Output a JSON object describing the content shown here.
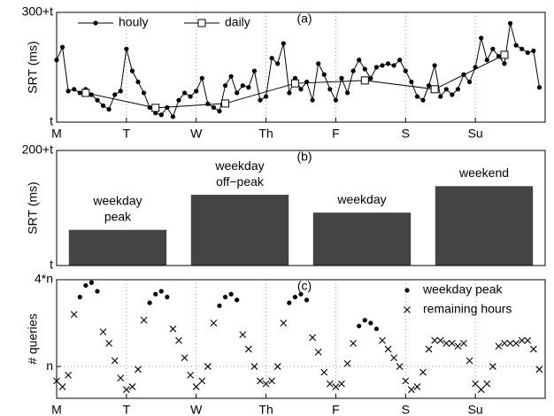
{
  "chart_data": [
    {
      "type": "line",
      "annotation": "(a)",
      "ylabel": "SRT (ms)",
      "xlim": [
        0,
        168
      ],
      "ylim": [
        0,
        300
      ],
      "xticks": [
        {
          "value": 0,
          "label": "M"
        },
        {
          "value": 24,
          "label": "T"
        },
        {
          "value": 48,
          "label": "W"
        },
        {
          "value": 72,
          "label": "Th"
        },
        {
          "value": 96,
          "label": "F"
        },
        {
          "value": 120,
          "label": "S"
        },
        {
          "value": 144,
          "label": "Su"
        }
      ],
      "yticks": [
        {
          "value": 0,
          "label": "t"
        },
        {
          "value": 300,
          "label": "300+t"
        }
      ],
      "grid": true,
      "legend": "upper left",
      "series": [
        {
          "name": "houly",
          "color": "#000000",
          "marker": "dot",
          "x": [
            0,
            2,
            4,
            6,
            8,
            10,
            12,
            14,
            16,
            18,
            20,
            22,
            24,
            26,
            28,
            30,
            32,
            34,
            36,
            38,
            40,
            42,
            44,
            46,
            48,
            50,
            52,
            54,
            56,
            58,
            60,
            62,
            64,
            66,
            68,
            70,
            72,
            74,
            76,
            78,
            80,
            82,
            84,
            86,
            88,
            90,
            92,
            94,
            96,
            98,
            100,
            102,
            104,
            106,
            108,
            110,
            112,
            114,
            116,
            118,
            120,
            122,
            124,
            126,
            128,
            130,
            132,
            134,
            136,
            138,
            140,
            142,
            144,
            146,
            148,
            150,
            152,
            154,
            156,
            158,
            160,
            162,
            164,
            166
          ],
          "values": [
            170,
            205,
            85,
            90,
            80,
            90,
            75,
            60,
            45,
            35,
            75,
            85,
            200,
            140,
            110,
            80,
            40,
            25,
            20,
            40,
            15,
            60,
            80,
            70,
            85,
            120,
            50,
            40,
            30,
            100,
            125,
            80,
            100,
            95,
            140,
            60,
            70,
            175,
            160,
            215,
            80,
            120,
            90,
            110,
            60,
            160,
            130,
            90,
            60,
            120,
            80,
            140,
            170,
            145,
            120,
            150,
            155,
            160,
            155,
            170,
            140,
            110,
            70,
            60,
            100,
            155,
            70,
            90,
            75,
            90,
            130,
            110,
            150,
            230,
            170,
            200,
            180,
            160,
            270,
            210,
            200,
            190,
            195,
            95
          ]
        },
        {
          "name": "daily",
          "color": "#000000",
          "marker": "square",
          "x": [
            10,
            34,
            58,
            82,
            106,
            130,
            154
          ],
          "values": [
            80,
            39,
            51,
            106,
            114,
            90,
            184
          ]
        }
      ]
    },
    {
      "type": "bar",
      "annotation": "(b)",
      "ylabel": "SRT (ms)",
      "ylim": [
        0,
        200
      ],
      "yticks": [
        {
          "value": 0,
          "label": "t"
        },
        {
          "value": 200,
          "label": "200+t"
        }
      ],
      "grid": true,
      "color": "#444444",
      "categories": [
        [
          "weekday",
          "peak"
        ],
        [
          "weekday",
          "off−peak"
        ],
        [
          "weekday"
        ],
        [
          "weekend"
        ]
      ],
      "values": [
        62,
        123,
        92,
        138
      ]
    },
    {
      "type": "scatter",
      "annotation": "(c)",
      "ylabel": "# queries",
      "xlim": [
        0,
        168
      ],
      "ylim": [
        -0.1,
        4
      ],
      "xticks": [
        {
          "value": 0,
          "label": "M"
        },
        {
          "value": 24,
          "label": "T"
        },
        {
          "value": 48,
          "label": "W"
        },
        {
          "value": 72,
          "label": "Th"
        },
        {
          "value": 96,
          "label": "F"
        },
        {
          "value": 120,
          "label": "S"
        },
        {
          "value": 144,
          "label": "Su"
        }
      ],
      "yticks": [
        {
          "value": 1,
          "label": "n"
        },
        {
          "value": 4,
          "label": "4*n"
        }
      ],
      "grid": true,
      "legend": "upper right",
      "series": [
        {
          "name": "weekday peak",
          "color": "#000000",
          "marker": "dot",
          "x": [
            8,
            10,
            12,
            14,
            32,
            34,
            36,
            38,
            56,
            58,
            60,
            62,
            80,
            82,
            84,
            86,
            104,
            106,
            108,
            110
          ],
          "values": [
            3.4,
            3.8,
            3.9,
            3.6,
            3.2,
            3.5,
            3.6,
            3.4,
            3.1,
            3.4,
            3.5,
            3.3,
            3.2,
            3.4,
            3.5,
            3.3,
            2.4,
            2.6,
            2.5,
            2.3
          ]
        },
        {
          "name": "remaining hours",
          "color": "#000000",
          "marker": "x",
          "x": [
            0,
            2,
            4,
            6,
            16,
            18,
            20,
            22,
            24,
            26,
            28,
            30,
            40,
            42,
            44,
            46,
            48,
            50,
            52,
            54,
            64,
            66,
            68,
            70,
            72,
            74,
            76,
            78,
            88,
            90,
            92,
            94,
            96,
            98,
            100,
            102,
            112,
            114,
            116,
            118,
            120,
            122,
            124,
            126,
            128,
            130,
            132,
            134,
            136,
            138,
            140,
            142,
            144,
            146,
            148,
            150,
            152,
            154,
            156,
            158,
            160,
            162,
            164,
            166
          ],
          "values": [
            0.5,
            0.3,
            0.7,
            2.8,
            2.2,
            1.8,
            1.2,
            0.6,
            0.2,
            0.3,
            0.9,
            2.6,
            2.3,
            1.9,
            1.3,
            0.7,
            0.3,
            0.5,
            1.0,
            2.5,
            2.1,
            1.6,
            1.0,
            0.5,
            0.4,
            0.5,
            1.0,
            2.5,
            2.0,
            1.5,
            0.8,
            0.4,
            0.3,
            0.4,
            1.1,
            1.8,
            1.9,
            1.6,
            1.3,
            1.0,
            0.5,
            0.2,
            0.3,
            0.8,
            1.6,
            1.9,
            1.9,
            1.8,
            1.8,
            1.7,
            1.8,
            1.2,
            0.4,
            0.2,
            0.4,
            1.0,
            1.7,
            1.8,
            1.8,
            1.8,
            1.9,
            1.9,
            1.6,
            0.9
          ]
        }
      ]
    }
  ]
}
